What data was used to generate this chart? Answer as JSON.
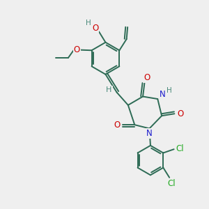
{
  "bg_color": "#efefef",
  "bond_color": "#2d6b55",
  "bond_width": 1.4,
  "dbo": 0.055,
  "atom_colors": {
    "O": "#cc0000",
    "N": "#1a1acc",
    "Cl": "#22aa22",
    "H": "#4a8a7a",
    "C": "#2d6b55"
  },
  "font_size": 8.5,
  "fig_size": [
    3.0,
    3.0
  ],
  "dpi": 100
}
